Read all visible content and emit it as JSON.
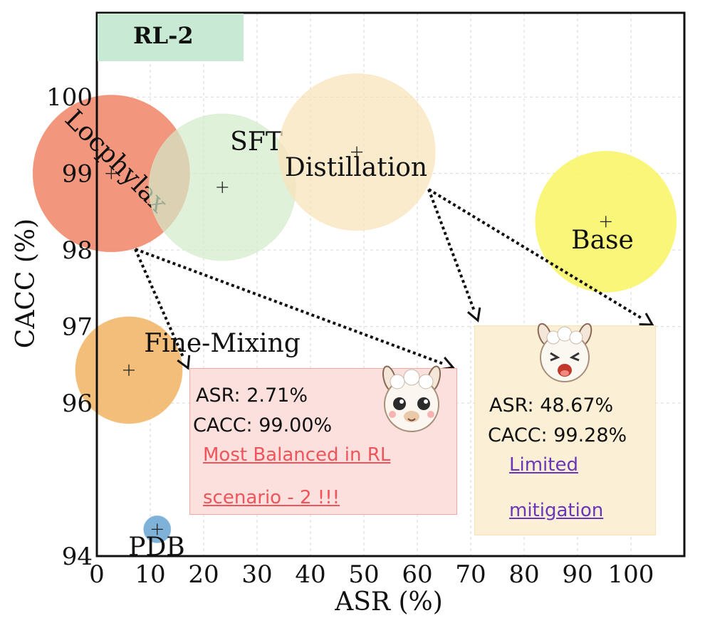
{
  "chart_data": {
    "type": "scatter",
    "title": "RL-2",
    "xlabel": "ASR (%)",
    "ylabel": "CACC (%)",
    "xlim": [
      0,
      110
    ],
    "ylim": [
      94,
      101.1
    ],
    "x_ticks": [
      0,
      10,
      20,
      30,
      40,
      50,
      60,
      70,
      80,
      90,
      100
    ],
    "y_ticks": [
      94,
      96,
      97,
      98,
      99,
      100
    ],
    "grid": true,
    "points": [
      {
        "name": "Locphylax",
        "x": 2.71,
        "y": 99.0,
        "color": "#f08566"
      },
      {
        "name": "SFT",
        "x": 23.5,
        "y": 98.82,
        "color": "#d3ebca"
      },
      {
        "name": "Distillation",
        "x": 48.67,
        "y": 99.28,
        "color": "#fae3b8"
      },
      {
        "name": "Base",
        "x": 95.3,
        "y": 98.37,
        "color": "#f8f56b"
      },
      {
        "name": "Fine-Mixing",
        "x": 6.0,
        "y": 96.43,
        "color": "#f2b76b"
      },
      {
        "name": "PDB",
        "x": 11.3,
        "y": 94.35,
        "color": "#7fb2d8"
      }
    ]
  },
  "annotations": {
    "box1": {
      "asr": "ASR: 2.71%",
      "cacc": "CACC: 99.00%",
      "note_line1": "Most Balanced in RL",
      "note_line2": "scenario - 2 !!!"
    },
    "box2": {
      "asr": "ASR: 48.67%",
      "cacc": "CACC: 99.28%",
      "note_line1": " Limited",
      "note_line2": "mitigation"
    }
  }
}
